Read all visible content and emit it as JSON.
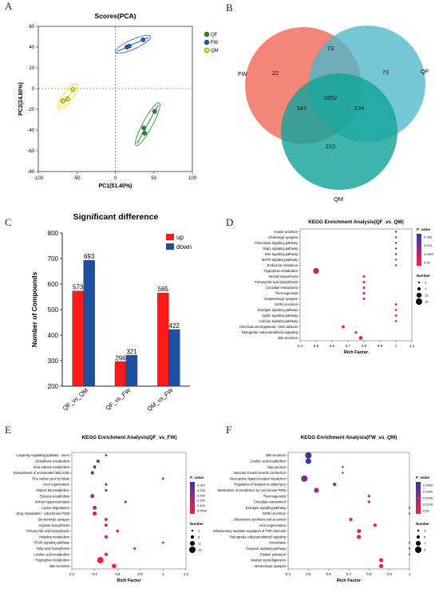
{
  "panel_letters": [
    "A",
    "B",
    "C",
    "D",
    "E",
    "F"
  ],
  "colors": {
    "QF": "#1e8a28",
    "FW": "#1f5bb5",
    "QM": "#f0e000",
    "venn_fw": "#f26a5a",
    "venn_qf": "#4bb7cc",
    "venn_qm": "#14a39a",
    "up": "#ff1a1a",
    "down": "#1f4fa0",
    "pv_low": "#ff1a3c",
    "pv_mid": "#a0288a",
    "pv_high": "#2c3c9a"
  },
  "chart_data": [
    {
      "id": "A",
      "type": "scatter",
      "title": "Scores(PCA)",
      "xlabel": "PC1(51.40%)",
      "ylabel": "PC2(24.80%)",
      "xlim": [
        -100,
        100
      ],
      "ylim": [
        -80,
        60
      ],
      "xticks": [
        "-100",
        "-50",
        "0",
        "50",
        "100"
      ],
      "yticks": [
        "60",
        "40",
        "20",
        "0",
        "-20",
        "-40",
        "-60",
        "-80"
      ],
      "legend_position": "right",
      "series": [
        {
          "name": "QF",
          "points": [
            [
              37,
              -38
            ],
            [
              38,
              -43
            ],
            [
              51,
              -22
            ]
          ]
        },
        {
          "name": "FW",
          "points": [
            [
              15,
              40
            ],
            [
              18,
              41
            ],
            [
              36,
              47
            ]
          ]
        },
        {
          "name": "QM",
          "points": [
            [
              -68,
              -12
            ],
            [
              -62,
              -10
            ],
            [
              -55,
              -1
            ]
          ]
        }
      ]
    },
    {
      "id": "B",
      "type": "venn",
      "sets": [
        "FW",
        "QF",
        "QM"
      ],
      "regions": {
        "FW_only": "22",
        "QF_only": "73",
        "QM_only": "210",
        "FW_QF": "73",
        "FW_QM": "141",
        "QF_QM": "134",
        "all": "1852"
      }
    },
    {
      "id": "C",
      "type": "bar",
      "title": "Significant difference",
      "ylabel": "Number of Compounds",
      "ylim": [
        200,
        800
      ],
      "yticks": [
        "800",
        "700",
        "600",
        "500",
        "400",
        "300",
        "200"
      ],
      "categories": [
        "QF_vs_QM",
        "QF_vs_FW",
        "QM_vs_FW"
      ],
      "legend_position": "top-right",
      "series": [
        {
          "name": "up",
          "values": [
            573,
            296,
            565
          ]
        },
        {
          "name": "down",
          "values": [
            693,
            321,
            422
          ]
        }
      ],
      "data_labels": [
        [
          "573",
          "693"
        ],
        [
          "296",
          "321"
        ],
        [
          "565",
          "422"
        ]
      ]
    },
    {
      "id": "D",
      "type": "scatter",
      "title": "KEGG Enrichment Analysis(QF_vs_QM)",
      "xlabel": "Rich Factor",
      "xlim": [
        0.4,
        1.1
      ],
      "xticks": [
        "0.4",
        "0.5",
        "0.6",
        "0.7",
        "0.8",
        "0.9",
        "1",
        "1.1"
      ],
      "pvalue_label": "P_value",
      "pvalue_ticks": [
        "0.150",
        "0.100",
        "0.0500",
        "0.00"
      ],
      "number_label": "Number",
      "number_ticks": [
        "2",
        "7",
        "13",
        "18"
      ],
      "terms": [
        {
          "label": "Insulin secretion",
          "x": 1.0,
          "n": 2,
          "p": 0.14
        },
        {
          "label": "Cholinergic synapse",
          "x": 1.0,
          "n": 2,
          "p": 0.14
        },
        {
          "label": "Chemokine signaling pathway",
          "x": 1.0,
          "n": 2,
          "p": 0.14
        },
        {
          "label": "Rap1 signaling pathway",
          "x": 1.0,
          "n": 2,
          "p": 0.14
        },
        {
          "label": "Ras signaling pathway",
          "x": 1.0,
          "n": 2,
          "p": 0.14
        },
        {
          "label": "MAPK signaling pathway",
          "x": 1.0,
          "n": 2,
          "p": 0.14
        },
        {
          "label": "Endocrine resistance",
          "x": 1.0,
          "n": 2,
          "p": 0.14
        },
        {
          "label": "Tryptophan metabolism",
          "x": 0.5,
          "n": 16,
          "p": 0.07
        },
        {
          "label": "Steroid biosynthesis",
          "x": 0.8,
          "n": 4,
          "p": 0.01
        },
        {
          "label": "Primary bile acid biosynthesis",
          "x": 0.8,
          "n": 4,
          "p": 0.01
        },
        {
          "label": "Circadian entrainment",
          "x": 0.8,
          "n": 4,
          "p": 0.01
        },
        {
          "label": "Thermogenesis",
          "x": 0.8,
          "n": 4,
          "p": 0.01
        },
        {
          "label": "Dopaminergic synapse",
          "x": 0.8,
          "n": 4,
          "p": 0.01
        },
        {
          "label": "GnRH secretion",
          "x": 1.0,
          "n": 3,
          "p": 0.01
        },
        {
          "label": "Estrogen signaling pathway",
          "x": 1.0,
          "n": 3,
          "p": 0.01
        },
        {
          "label": "Apelin signaling pathway",
          "x": 1.0,
          "n": 3,
          "p": 0.01
        },
        {
          "label": "Calcium signaling pathway",
          "x": 1.0,
          "n": 3,
          "p": 0.01
        },
        {
          "label": "Chemical carcinogenesis - DNA adducts",
          "x": 0.67,
          "n": 6,
          "p": 0.01
        },
        {
          "label": "Retrograde endocannabinoid signaling",
          "x": 0.75,
          "n": 4,
          "p": 0.01
        },
        {
          "label": "Bile secretion",
          "x": 0.78,
          "n": 9,
          "p": 0.005
        }
      ]
    },
    {
      "id": "E",
      "type": "scatter",
      "title": "KEGG Enrichment Analysis(QF_vs_FW)",
      "xlabel": "Rich Factor",
      "xlim": [
        0.2,
        1.2
      ],
      "xticks": [
        "0.2",
        "0.4",
        "0.6",
        "0.8",
        "1",
        "1.2"
      ],
      "pvalue_label": "P_value",
      "pvalue_ticks": [
        "0.300",
        "0.250",
        "0.200",
        "0.150",
        "0.100",
        "0.0500"
      ],
      "number_label": "Number",
      "number_ticks": [
        "1",
        "6",
        "11",
        "16"
      ],
      "terms": [
        {
          "label": "Longevity regulating pathway - worm",
          "x": 0.5,
          "n": 2,
          "p": 0.3
        },
        {
          "label": "Glutathione metabolism",
          "x": 0.43,
          "n": 5,
          "p": 0.28
        },
        {
          "label": "beta-Alanine metabolism",
          "x": 0.4,
          "n": 5,
          "p": 0.26
        },
        {
          "label": "Biosynthesis of unsaturated fatty acids",
          "x": 0.38,
          "n": 6,
          "p": 0.25
        },
        {
          "label": "One carbon pool by folate",
          "x": 1.0,
          "n": 2,
          "p": 0.2
        },
        {
          "label": "Axon regeneration",
          "x": 0.5,
          "n": 3,
          "p": 0.2
        },
        {
          "label": "Vitamin B6 metabolism",
          "x": 0.5,
          "n": 3,
          "p": 0.2
        },
        {
          "label": "Tyrosine metabolism",
          "x": 0.38,
          "n": 8,
          "p": 0.15
        },
        {
          "label": "African trypanosomiasis",
          "x": 0.67,
          "n": 3,
          "p": 0.12
        },
        {
          "label": "Lysine degradation",
          "x": 0.4,
          "n": 8,
          "p": 0.08
        },
        {
          "label": "Drug metabolism - cytochrome P450",
          "x": 0.4,
          "n": 8,
          "p": 0.08
        },
        {
          "label": "Serotonergic synapse",
          "x": 0.5,
          "n": 5,
          "p": 0.05
        },
        {
          "label": "Arginine biosynthesis",
          "x": 0.5,
          "n": 5,
          "p": 0.05
        },
        {
          "label": "Primary bile acid biosynthesis",
          "x": 0.6,
          "n": 4,
          "p": 0.05
        },
        {
          "label": "Histidine metabolism",
          "x": 0.5,
          "n": 6,
          "p": 0.04
        },
        {
          "label": "PPAR signaling pathway",
          "x": 1.0,
          "n": 2,
          "p": 0.04
        },
        {
          "label": "Fatty acid biosynthesis",
          "x": 0.75,
          "n": 3,
          "p": 0.03
        },
        {
          "label": "Linoleic acid metabolism",
          "x": 0.5,
          "n": 6,
          "p": 0.02
        },
        {
          "label": "Tryptophan metabolism",
          "x": 0.45,
          "n": 16,
          "p": 0.01
        },
        {
          "label": "Bile secretion",
          "x": 0.57,
          "n": 10,
          "p": 0.005
        }
      ]
    },
    {
      "id": "F",
      "type": "scatter",
      "title": "KEGG Enrichment Analysis(FW_vs_QM)",
      "xlabel": "Rich Factor",
      "xlim": [
        0.4,
        1.0
      ],
      "xticks": [
        "0.4",
        "0.5",
        "0.6",
        "0.7",
        "0.8",
        "0.9",
        "1"
      ],
      "pvalue_label": "P_value",
      "pvalue_ticks": [
        "0.0400",
        "0.0300",
        "0.0200",
        "0.0100",
        "0.00"
      ],
      "number_label": "Number",
      "number_ticks": [
        "3",
        "5",
        "7",
        "9"
      ],
      "terms": [
        {
          "label": "Bile secretion",
          "x": 0.5,
          "n": 9,
          "p": 0.042
        },
        {
          "label": "Linoleic acid metabolism",
          "x": 0.5,
          "n": 8,
          "p": 0.042
        },
        {
          "label": "Gap junction",
          "x": 0.67,
          "n": 3,
          "p": 0.04
        },
        {
          "label": "Vascular smooth muscle contraction",
          "x": 0.67,
          "n": 3,
          "p": 0.04
        },
        {
          "label": "Neuroactive ligand-receptor interaction",
          "x": 0.48,
          "n": 9,
          "p": 0.03
        },
        {
          "label": "Regulation of lipolysis in adipocytes",
          "x": 0.63,
          "n": 5,
          "p": 0.024
        },
        {
          "label": "Metabolism of xenobiotics by cytochrome P450",
          "x": 0.54,
          "n": 7,
          "p": 0.02
        },
        {
          "label": "Thermogenesis",
          "x": 0.8,
          "n": 4,
          "p": 0.012
        },
        {
          "label": "Circadian entrainment",
          "x": 0.8,
          "n": 4,
          "p": 0.012
        },
        {
          "label": "Estrogen signaling pathway",
          "x": 1.0,
          "n": 3,
          "p": 0.01
        },
        {
          "label": "GnRH secretion",
          "x": 1.0,
          "n": 3,
          "p": 0.01
        },
        {
          "label": "Aldosterone synthesis and secretion",
          "x": 0.71,
          "n": 5,
          "p": 0.006
        },
        {
          "label": "Axon regeneration",
          "x": 0.83,
          "n": 5,
          "p": 0.005
        },
        {
          "label": "Inflammatory mediator regulation of TRP channels",
          "x": 0.75,
          "n": 6,
          "p": 0.004
        },
        {
          "label": "Retrograde endocannabinoid signaling",
          "x": 0.75,
          "n": 6,
          "p": 0.004
        },
        {
          "label": "Amoebiasis",
          "x": 1.0,
          "n": 3,
          "p": 0.003
        },
        {
          "label": "Oxytocin signaling pathway",
          "x": 1.0,
          "n": 3,
          "p": 0.003
        },
        {
          "label": "Platelet activation",
          "x": 1.0,
          "n": 3,
          "p": 0.003
        },
        {
          "label": "Ovarian steroidogenesis",
          "x": 0.86,
          "n": 6,
          "p": 0.002
        },
        {
          "label": "Serotonergic synapse",
          "x": 0.86,
          "n": 6,
          "p": 0.002
        }
      ]
    }
  ]
}
